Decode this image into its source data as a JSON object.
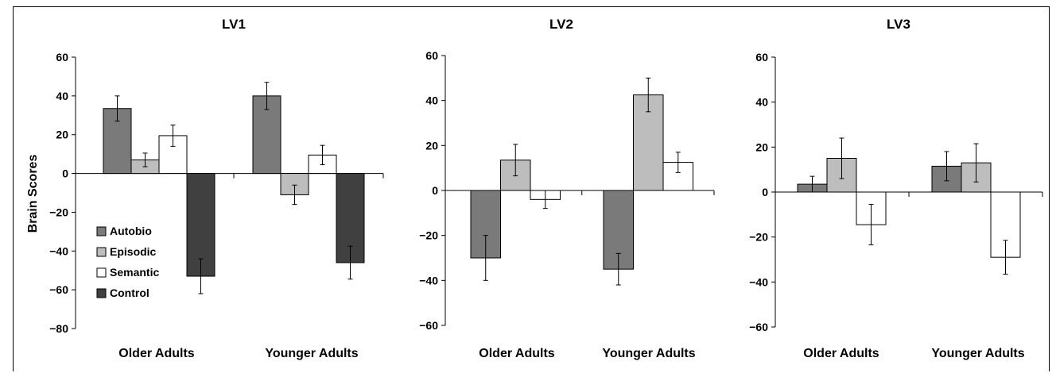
{
  "figure": {
    "ylabel": "Brain Scores",
    "legend_placement": "lower-left of first panel",
    "series_colors": {
      "Autobio": "#7a7a7a",
      "Episodic": "#bdbdbd",
      "Semantic": "#ffffff",
      "Control": "#404040"
    }
  },
  "chart_data": [
    {
      "type": "bar",
      "title": "LV1",
      "categories": [
        "Older Adults",
        "Younger Adults"
      ],
      "ylim": [
        -80,
        60
      ],
      "yticks": [
        60,
        40,
        20,
        0,
        -20,
        -40,
        -60,
        -80
      ],
      "ytick_labels": [
        "60",
        "40",
        "20",
        "0",
        "−20",
        "−40",
        "−60",
        "−80"
      ],
      "ylabel": "Brain Scores",
      "grid": false,
      "legend": [
        "Autobio",
        "Episodic",
        "Semantic",
        "Control"
      ],
      "series": [
        {
          "name": "Autobio",
          "values": [
            33.5,
            40
          ],
          "errors": [
            6.5,
            7
          ]
        },
        {
          "name": "Episodic",
          "values": [
            7,
            -11
          ],
          "errors": [
            3.5,
            5
          ]
        },
        {
          "name": "Semantic",
          "values": [
            19.5,
            9.5
          ],
          "errors": [
            5.5,
            5
          ]
        },
        {
          "name": "Control",
          "values": [
            -53,
            -46
          ],
          "errors": [
            9,
            8.5
          ]
        }
      ]
    },
    {
      "type": "bar",
      "title": "LV2",
      "categories": [
        "Older Adults",
        "Younger Adults"
      ],
      "ylim": [
        -60,
        60
      ],
      "yticks": [
        60,
        40,
        20,
        0,
        -20,
        -40,
        -60
      ],
      "ytick_labels": [
        "60",
        "40",
        "20",
        "0",
        "−20",
        "−40",
        "−60"
      ],
      "grid": false,
      "series": [
        {
          "name": "Autobio",
          "values": [
            -30,
            -35
          ],
          "errors": [
            10,
            7
          ]
        },
        {
          "name": "Episodic",
          "values": [
            13.5,
            42.5
          ],
          "errors": [
            7,
            7.5
          ]
        },
        {
          "name": "Semantic",
          "values": [
            -4,
            12.5
          ],
          "errors": [
            4,
            4.5
          ]
        }
      ]
    },
    {
      "type": "bar",
      "title": "LV3",
      "categories": [
        "Older Adults",
        "Younger Adults"
      ],
      "ylim": [
        -60,
        60
      ],
      "yticks": [
        60,
        40,
        20,
        0,
        -20,
        -40,
        -60
      ],
      "ytick_labels": [
        "60",
        "40",
        "20",
        "0",
        "−20",
        "−40",
        "−60"
      ],
      "grid": false,
      "series": [
        {
          "name": "Autobio",
          "values": [
            3.5,
            11.5
          ],
          "errors": [
            3.5,
            6.5
          ]
        },
        {
          "name": "Episodic",
          "values": [
            15,
            13
          ],
          "errors": [
            9,
            8.5
          ]
        },
        {
          "name": "Semantic",
          "values": [
            -14.5,
            -29
          ],
          "errors": [
            9,
            7.5
          ]
        }
      ]
    }
  ]
}
